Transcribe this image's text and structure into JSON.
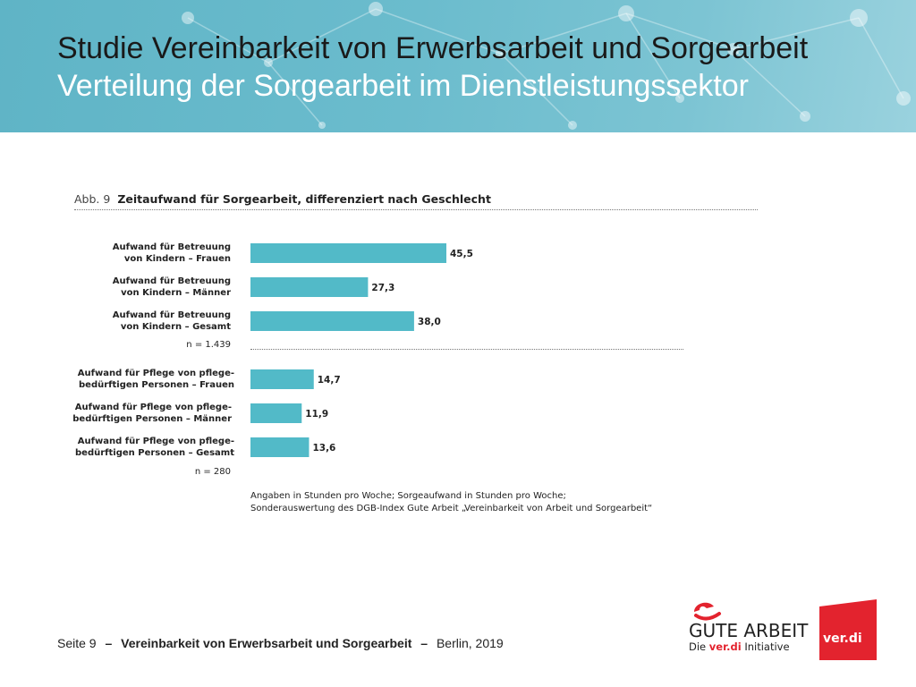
{
  "header": {
    "title": "Studie Vereinbarkeit von Erwerbsarbeit und Sorgearbeit",
    "subtitle": "Verteilung der Sorgearbeit im Dienstleistungssektor"
  },
  "figure": {
    "number": "Abb. 9",
    "title": "Zeitaufwand für Sorgearbeit, differenziert nach Geschlecht"
  },
  "chart_data": {
    "type": "bar",
    "orientation": "horizontal",
    "title": "Zeitaufwand für Sorgearbeit, differenziert nach Geschlecht",
    "bar_color": "#52bac8",
    "groups": [
      {
        "n_label": "n = 1.439",
        "items": [
          {
            "label_line1": "Aufwand für Betreuung",
            "label_line2": "von Kindern – Frauen",
            "value": 45.5,
            "value_label": "45,5"
          },
          {
            "label_line1": "Aufwand für Betreuung",
            "label_line2": "von Kindern – Männer",
            "value": 27.3,
            "value_label": "27,3"
          },
          {
            "label_line1": "Aufwand für Betreuung",
            "label_line2": "von Kindern – Gesamt",
            "value": 38.0,
            "value_label": "38,0"
          }
        ]
      },
      {
        "n_label": "n = 280",
        "items": [
          {
            "label_line1": "Aufwand für Pflege von pflege-",
            "label_line2": "bedürftigen Personen – Frauen",
            "value": 14.7,
            "value_label": "14,7"
          },
          {
            "label_line1": "Aufwand für Pflege von pflege-",
            "label_line2": "bedürftigen Personen – Männer",
            "value": 11.9,
            "value_label": "11,9"
          },
          {
            "label_line1": "Aufwand für Pflege von pflege-",
            "label_line2": "bedürftigen Personen – Gesamt",
            "value": 13.6,
            "value_label": "13,6"
          }
        ]
      }
    ],
    "note_line1": "Angaben in Stunden pro Woche; Sorgeaufwand in Stunden pro Woche;",
    "note_line2": "Sonderauswertung des DGB-Index Gute Arbeit „Vereinbarkeit von Arbeit und Sorgearbeit“"
  },
  "footer": {
    "page": "Seite 9",
    "separator": "–",
    "title": "Vereinbarkeit von Erwerbsarbeit und Sorgearbeit",
    "place_date": "Berlin, 2019"
  },
  "logos": {
    "gute_arbeit": "GUTE ARBEIT",
    "gute_sub_prefix": "Die",
    "gute_sub_brand": "ver.di",
    "gute_sub_suffix": "Initiative",
    "verdi": "ver.di",
    "verdi_color": "#e3232e",
    "brand_red": "#e3232e"
  }
}
